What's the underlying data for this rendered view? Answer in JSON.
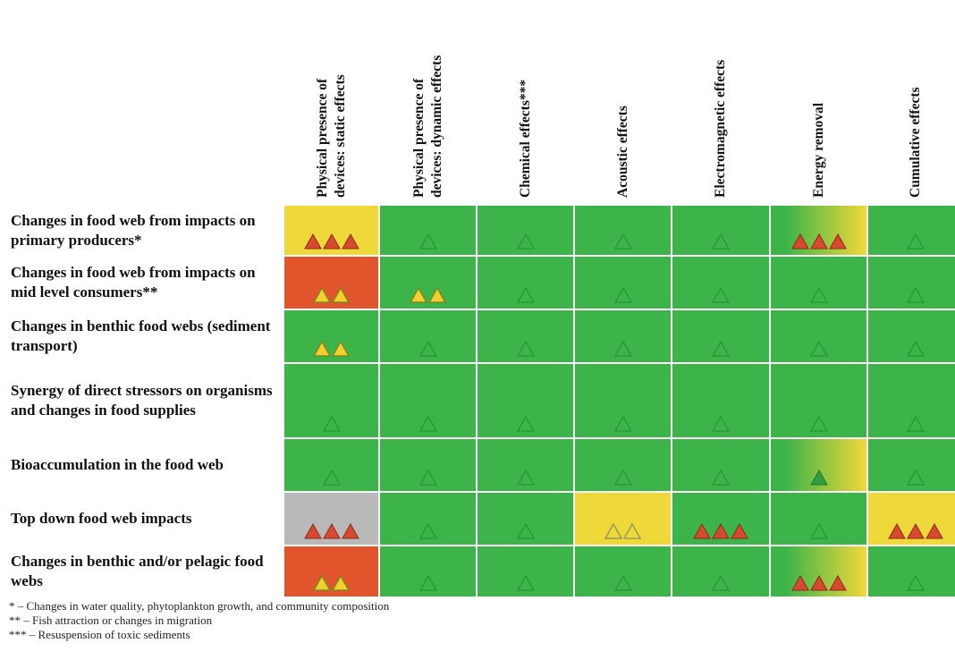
{
  "colors": {
    "green": "#3cb44a",
    "yellow": "#efd83a",
    "red": "#e2542c",
    "grey": "#b9b9b9",
    "tri_red": "#d84a30",
    "tri_yellow": "#f2cf2e",
    "tri_green_outline": "#2a9a38"
  },
  "columns": [
    {
      "lines": [
        "Physical presence of",
        "devices: static effects"
      ]
    },
    {
      "lines": [
        "Physical presence of",
        "devices: dynamic effects"
      ]
    },
    {
      "lines": [
        "Chemical effects***"
      ]
    },
    {
      "lines": [
        "Acoustic effects"
      ]
    },
    {
      "lines": [
        "Electromagnetic effects"
      ]
    },
    {
      "lines": [
        "Energy removal"
      ]
    },
    {
      "lines": [
        "Cumulative effects"
      ]
    }
  ],
  "rows": [
    {
      "label": "Changes in food web from impacts on primary producers*",
      "cells": [
        {
          "bg": "yellow",
          "tri": "red",
          "count": 3
        },
        {
          "bg": "green",
          "tri": "outline",
          "count": 1
        },
        {
          "bg": "green",
          "tri": "outline",
          "count": 1
        },
        {
          "bg": "green",
          "tri": "outline",
          "count": 1
        },
        {
          "bg": "green",
          "tri": "outline",
          "count": 1
        },
        {
          "bg": "green-to-yellow",
          "tri": "red",
          "count": 3
        },
        {
          "bg": "green",
          "tri": "outline",
          "count": 1
        }
      ]
    },
    {
      "label": "Changes in food web from impacts on mid level consumers**",
      "cells": [
        {
          "bg": "red",
          "tri": "yellow",
          "count": 2
        },
        {
          "bg": "green",
          "tri": "yellow",
          "count": 2
        },
        {
          "bg": "green",
          "tri": "outline",
          "count": 1
        },
        {
          "bg": "green",
          "tri": "outline",
          "count": 1
        },
        {
          "bg": "green",
          "tri": "outline",
          "count": 1
        },
        {
          "bg": "green",
          "tri": "outline",
          "count": 1
        },
        {
          "bg": "green",
          "tri": "outline",
          "count": 1
        }
      ]
    },
    {
      "label": "Changes in benthic food webs (sediment transport)",
      "cells": [
        {
          "bg": "green",
          "tri": "yellow",
          "count": 2
        },
        {
          "bg": "green",
          "tri": "outline",
          "count": 1
        },
        {
          "bg": "green",
          "tri": "outline",
          "count": 1
        },
        {
          "bg": "green",
          "tri": "outline",
          "count": 1
        },
        {
          "bg": "green",
          "tri": "outline",
          "count": 1
        },
        {
          "bg": "green",
          "tri": "outline",
          "count": 1
        },
        {
          "bg": "green",
          "tri": "outline",
          "count": 1
        }
      ]
    },
    {
      "label": "Synergy of direct stressors on organisms and changes in food supplies",
      "cells": [
        {
          "bg": "green",
          "tri": "outline",
          "count": 1
        },
        {
          "bg": "green",
          "tri": "outline",
          "count": 1
        },
        {
          "bg": "green",
          "tri": "outline",
          "count": 1
        },
        {
          "bg": "green",
          "tri": "outline",
          "count": 1
        },
        {
          "bg": "green",
          "tri": "outline",
          "count": 1
        },
        {
          "bg": "green",
          "tri": "outline",
          "count": 1
        },
        {
          "bg": "green",
          "tri": "outline",
          "count": 1
        }
      ]
    },
    {
      "label": "Bioaccumulation in the food web",
      "cells": [
        {
          "bg": "green",
          "tri": "outline",
          "count": 1
        },
        {
          "bg": "green",
          "tri": "outline",
          "count": 1
        },
        {
          "bg": "green",
          "tri": "outline",
          "count": 1
        },
        {
          "bg": "green",
          "tri": "outline",
          "count": 1
        },
        {
          "bg": "green",
          "tri": "outline",
          "count": 1
        },
        {
          "bg": "green-to-yellow",
          "tri": "green",
          "count": 1
        },
        {
          "bg": "green",
          "tri": "outline",
          "count": 1
        }
      ]
    },
    {
      "label": "Top down food web impacts",
      "cells": [
        {
          "bg": "grey",
          "tri": "red",
          "count": 3
        },
        {
          "bg": "green",
          "tri": "outline",
          "count": 1
        },
        {
          "bg": "green",
          "tri": "outline",
          "count": 1
        },
        {
          "bg": "yellow",
          "tri": "yellow-outline",
          "count": 2
        },
        {
          "bg": "green",
          "tri": "red",
          "count": 3
        },
        {
          "bg": "green",
          "tri": "outline",
          "count": 1
        },
        {
          "bg": "yellow",
          "tri": "red",
          "count": 3
        }
      ]
    },
    {
      "label": "Changes in benthic and/or pelagic food webs",
      "cells": [
        {
          "bg": "red",
          "tri": "yellow",
          "count": 2
        },
        {
          "bg": "green",
          "tri": "outline",
          "count": 1
        },
        {
          "bg": "green",
          "tri": "outline",
          "count": 1
        },
        {
          "bg": "green",
          "tri": "outline",
          "count": 1
        },
        {
          "bg": "green",
          "tri": "outline",
          "count": 1
        },
        {
          "bg": "green-to-yellow",
          "tri": "red",
          "count": 3
        },
        {
          "bg": "green",
          "tri": "outline",
          "count": 1
        }
      ]
    }
  ],
  "footnotes": [
    "* – Changes in water quality, phytoplankton growth, and community composition",
    "** – Fish attraction or changes in migration",
    "*** – Resuspension of toxic sediments"
  ]
}
